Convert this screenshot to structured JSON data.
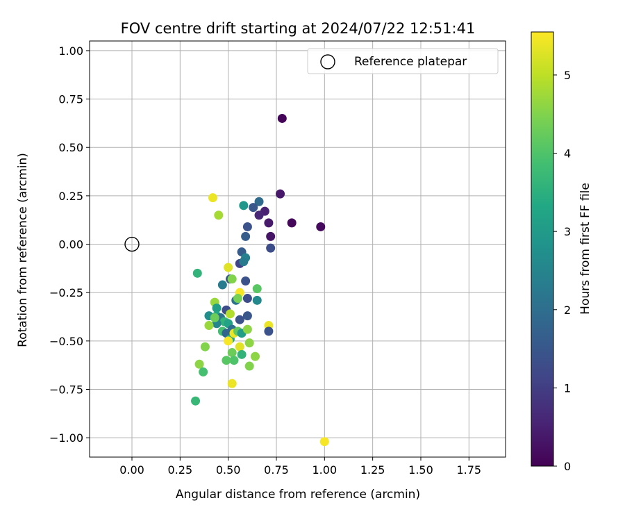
{
  "chart_data": {
    "type": "scatter",
    "title": "FOV centre drift starting at 2024/07/22 12:51:41",
    "xlabel": "Angular distance from reference (arcmin)",
    "ylabel": "Rotation from reference (arcmin)",
    "xlim": [
      -0.22,
      1.94
    ],
    "ylim": [
      -1.1,
      1.05
    ],
    "xticks": [
      "0.00",
      "0.25",
      "0.50",
      "0.75",
      "1.00",
      "1.25",
      "1.50",
      "1.75"
    ],
    "yticks": [
      "1.00",
      "0.75",
      "0.50",
      "0.25",
      "0.00",
      "−0.25",
      "−0.50",
      "−0.75",
      "−1.00"
    ],
    "grid": true,
    "legend": {
      "position": "top-right",
      "entries": [
        "Reference platepar"
      ]
    },
    "colorbar": {
      "label": "Hours from first FF file",
      "colormap": "viridis",
      "range": [
        0,
        5.55
      ],
      "ticks": [
        "0",
        "1",
        "2",
        "3",
        "4",
        "5"
      ]
    },
    "reference_point": {
      "x": 0.0,
      "y": 0.0
    },
    "points": [
      {
        "x": 0.78,
        "y": 0.65,
        "h": 0.05
      },
      {
        "x": 0.77,
        "y": 0.26,
        "h": 0.35
      },
      {
        "x": 0.83,
        "y": 0.11,
        "h": 0.1
      },
      {
        "x": 0.98,
        "y": 0.09,
        "h": 0.15
      },
      {
        "x": 0.72,
        "y": 0.04,
        "h": 0.3
      },
      {
        "x": 0.69,
        "y": 0.17,
        "h": 0.5
      },
      {
        "x": 0.71,
        "y": 0.11,
        "h": 0.4
      },
      {
        "x": 0.66,
        "y": 0.15,
        "h": 0.6
      },
      {
        "x": 0.66,
        "y": 0.22,
        "h": 1.9
      },
      {
        "x": 0.63,
        "y": 0.19,
        "h": 1.5
      },
      {
        "x": 0.58,
        "y": 0.2,
        "h": 2.9
      },
      {
        "x": 0.6,
        "y": 0.09,
        "h": 1.4
      },
      {
        "x": 0.59,
        "y": 0.04,
        "h": 1.6
      },
      {
        "x": 0.72,
        "y": -0.02,
        "h": 1.3
      },
      {
        "x": 0.57,
        "y": -0.04,
        "h": 1.6
      },
      {
        "x": 0.59,
        "y": -0.07,
        "h": 2.4
      },
      {
        "x": 0.56,
        "y": -0.1,
        "h": 1.1
      },
      {
        "x": 0.58,
        "y": -0.09,
        "h": 2.3
      },
      {
        "x": 0.5,
        "y": -0.12,
        "h": 5.3
      },
      {
        "x": 0.51,
        "y": -0.18,
        "h": 1.5
      },
      {
        "x": 0.47,
        "y": -0.21,
        "h": 2.3
      },
      {
        "x": 0.52,
        "y": -0.18,
        "h": 4.5
      },
      {
        "x": 0.59,
        "y": -0.19,
        "h": 1.4
      },
      {
        "x": 0.56,
        "y": -0.25,
        "h": 5.5
      },
      {
        "x": 0.54,
        "y": -0.29,
        "h": 2.1
      },
      {
        "x": 0.55,
        "y": -0.28,
        "h": 4.4
      },
      {
        "x": 0.6,
        "y": -0.28,
        "h": 1.3
      },
      {
        "x": 0.65,
        "y": -0.23,
        "h": 4.1
      },
      {
        "x": 0.65,
        "y": -0.29,
        "h": 2.6
      },
      {
        "x": 0.34,
        "y": -0.15,
        "h": 3.6
      },
      {
        "x": 0.42,
        "y": 0.24,
        "h": 5.4
      },
      {
        "x": 0.45,
        "y": 0.15,
        "h": 4.8
      },
      {
        "x": 0.43,
        "y": -0.3,
        "h": 4.7
      },
      {
        "x": 0.44,
        "y": -0.33,
        "h": 3.1
      },
      {
        "x": 0.4,
        "y": -0.37,
        "h": 2.7
      },
      {
        "x": 0.44,
        "y": -0.37,
        "h": 3.3
      },
      {
        "x": 0.49,
        "y": -0.34,
        "h": 1.3
      },
      {
        "x": 0.51,
        "y": -0.36,
        "h": 4.9
      },
      {
        "x": 0.46,
        "y": -0.38,
        "h": 2.1
      },
      {
        "x": 0.48,
        "y": -0.4,
        "h": 3.6
      },
      {
        "x": 0.5,
        "y": -0.41,
        "h": 3.2
      },
      {
        "x": 0.44,
        "y": -0.41,
        "h": 2.5
      },
      {
        "x": 0.4,
        "y": -0.42,
        "h": 4.7
      },
      {
        "x": 0.43,
        "y": -0.38,
        "h": 4.3
      },
      {
        "x": 0.56,
        "y": -0.39,
        "h": 1.4
      },
      {
        "x": 0.6,
        "y": -0.37,
        "h": 1.5
      },
      {
        "x": 0.52,
        "y": -0.44,
        "h": 2.0
      },
      {
        "x": 0.47,
        "y": -0.45,
        "h": 3.9
      },
      {
        "x": 0.49,
        "y": -0.46,
        "h": 1.8
      },
      {
        "x": 0.51,
        "y": -0.49,
        "h": 3.4
      },
      {
        "x": 0.53,
        "y": -0.46,
        "h": 5.4
      },
      {
        "x": 0.55,
        "y": -0.45,
        "h": 4.2
      },
      {
        "x": 0.57,
        "y": -0.46,
        "h": 3.1
      },
      {
        "x": 0.6,
        "y": -0.44,
        "h": 4.6
      },
      {
        "x": 0.71,
        "y": -0.42,
        "h": 5.4
      },
      {
        "x": 0.71,
        "y": -0.45,
        "h": 1.4
      },
      {
        "x": 0.5,
        "y": -0.5,
        "h": 5.5
      },
      {
        "x": 0.38,
        "y": -0.53,
        "h": 4.5
      },
      {
        "x": 0.56,
        "y": -0.53,
        "h": 5.3
      },
      {
        "x": 0.61,
        "y": -0.51,
        "h": 4.6
      },
      {
        "x": 0.52,
        "y": -0.56,
        "h": 4.3
      },
      {
        "x": 0.53,
        "y": -0.6,
        "h": 4.0
      },
      {
        "x": 0.49,
        "y": -0.6,
        "h": 4.1
      },
      {
        "x": 0.57,
        "y": -0.57,
        "h": 3.6
      },
      {
        "x": 0.64,
        "y": -0.58,
        "h": 4.6
      },
      {
        "x": 0.61,
        "y": -0.63,
        "h": 4.5
      },
      {
        "x": 0.35,
        "y": -0.62,
        "h": 4.6
      },
      {
        "x": 0.37,
        "y": -0.66,
        "h": 3.9
      },
      {
        "x": 0.52,
        "y": -0.72,
        "h": 5.4
      },
      {
        "x": 0.33,
        "y": -0.81,
        "h": 3.7
      },
      {
        "x": 1.0,
        "y": -1.02,
        "h": 5.5
      }
    ]
  }
}
